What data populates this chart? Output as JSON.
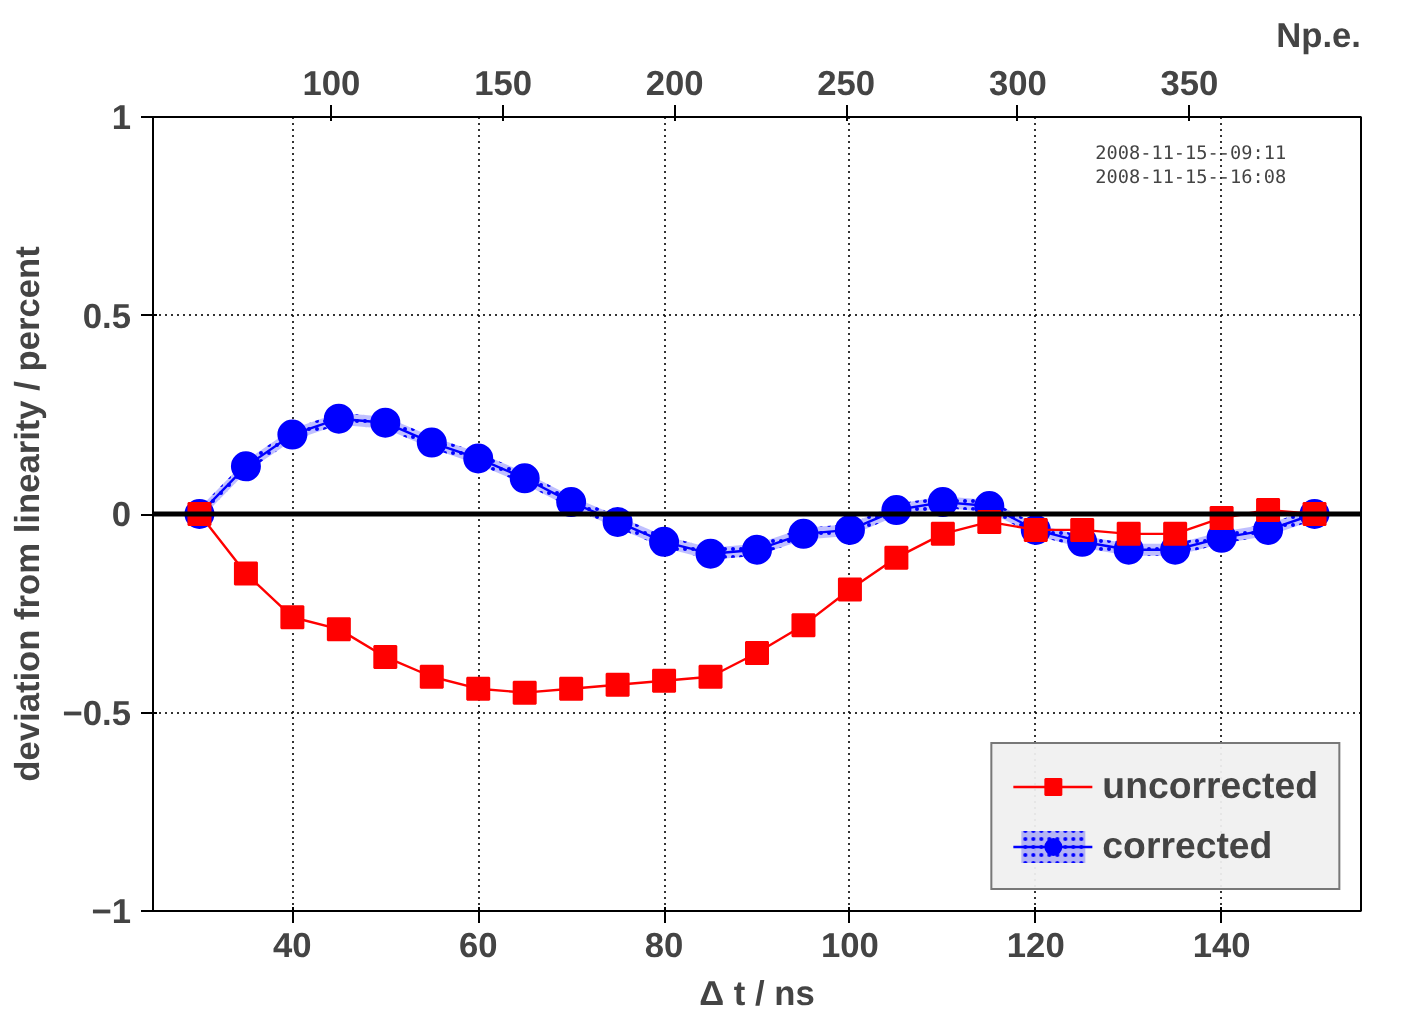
{
  "chart_data": {
    "type": "line",
    "xlabel": "Δ t / ns",
    "ylabel": "deviation from linearity / percent",
    "x2label": "Np.e.",
    "x": [
      30,
      35,
      40,
      45,
      50,
      55,
      60,
      65,
      70,
      75,
      80,
      85,
      90,
      95,
      100,
      105,
      110,
      115,
      120,
      125,
      130,
      135,
      140,
      145,
      150
    ],
    "xlim": [
      25,
      155
    ],
    "xticks": [
      40,
      60,
      80,
      100,
      120,
      140
    ],
    "x2lim": [
      48,
      400
    ],
    "x2ticks": [
      100,
      150,
      200,
      250,
      300,
      350
    ],
    "ylim": [
      -1,
      1
    ],
    "yticks": [
      -1,
      -0.5,
      0,
      0.5,
      1
    ],
    "grid": true,
    "legend": "bottom right",
    "ref_lines": [
      {
        "axis": "y",
        "value": 0,
        "label": null,
        "color": "#000000"
      }
    ],
    "annotations": [
      "2008-11-15--09:11",
      "2008-11-15--16:08"
    ],
    "series": [
      {
        "name": "uncorrected",
        "color": "#ff0000",
        "marker": "square",
        "values": [
          0,
          -0.15,
          -0.26,
          -0.29,
          -0.36,
          -0.41,
          -0.44,
          -0.45,
          -0.44,
          -0.43,
          -0.42,
          -0.41,
          -0.35,
          -0.28,
          -0.19,
          -0.11,
          -0.05,
          -0.02,
          -0.04,
          -0.04,
          -0.05,
          -0.05,
          -0.01,
          0.01,
          0
        ]
      },
      {
        "name": "corrected",
        "color": "#0000ff",
        "marker": "circle",
        "values": [
          0,
          0.12,
          0.2,
          0.24,
          0.23,
          0.18,
          0.14,
          0.09,
          0.03,
          -0.02,
          -0.07,
          -0.1,
          -0.09,
          -0.05,
          -0.04,
          0.01,
          0.03,
          0.02,
          -0.04,
          -0.07,
          -0.09,
          -0.09,
          -0.06,
          -0.04,
          0
        ],
        "lower": [
          -0.015,
          0.105,
          0.185,
          0.225,
          0.215,
          0.165,
          0.125,
          0.075,
          0.015,
          -0.035,
          -0.085,
          -0.115,
          -0.105,
          -0.065,
          -0.055,
          -0.005,
          0.015,
          0.005,
          -0.055,
          -0.085,
          -0.105,
          -0.105,
          -0.075,
          -0.055,
          -0.015
        ],
        "upper": [
          0.015,
          0.135,
          0.215,
          0.255,
          0.245,
          0.195,
          0.155,
          0.105,
          0.045,
          -0.005,
          -0.055,
          -0.085,
          -0.075,
          -0.035,
          -0.025,
          0.025,
          0.045,
          0.035,
          -0.025,
          -0.055,
          -0.075,
          -0.075,
          -0.045,
          -0.025,
          0.015
        ]
      }
    ]
  }
}
